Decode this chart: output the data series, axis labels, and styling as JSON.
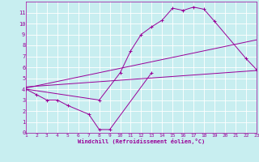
{
  "xlabel": "Windchill (Refroidissement éolien,°C)",
  "bg_color": "#c8eef0",
  "line_color": "#990099",
  "grid_color": "#ffffff",
  "xlim": [
    1,
    23
  ],
  "ylim": [
    0,
    12
  ],
  "xticks": [
    1,
    2,
    3,
    4,
    5,
    6,
    7,
    8,
    9,
    10,
    11,
    12,
    13,
    14,
    15,
    16,
    17,
    18,
    19,
    20,
    21,
    22,
    23
  ],
  "yticks": [
    0,
    1,
    2,
    3,
    4,
    5,
    6,
    7,
    8,
    9,
    10,
    11
  ],
  "line1_x": [
    1,
    2,
    3,
    4,
    5,
    7,
    8,
    9,
    13
  ],
  "line1_y": [
    4.0,
    3.5,
    3.0,
    3.0,
    2.5,
    1.7,
    0.3,
    0.3,
    5.5
  ],
  "line2_x": [
    1,
    8,
    10,
    11,
    12,
    13,
    14,
    15,
    16,
    17,
    18,
    19,
    22,
    23
  ],
  "line2_y": [
    4.0,
    3.0,
    5.5,
    7.5,
    9.0,
    9.7,
    10.3,
    11.4,
    11.2,
    11.5,
    11.3,
    10.2,
    6.8,
    5.8
  ],
  "line3_x": [
    1,
    23
  ],
  "line3_y": [
    4.2,
    5.7
  ],
  "line4_x": [
    1,
    23
  ],
  "line4_y": [
    4.1,
    8.5
  ]
}
